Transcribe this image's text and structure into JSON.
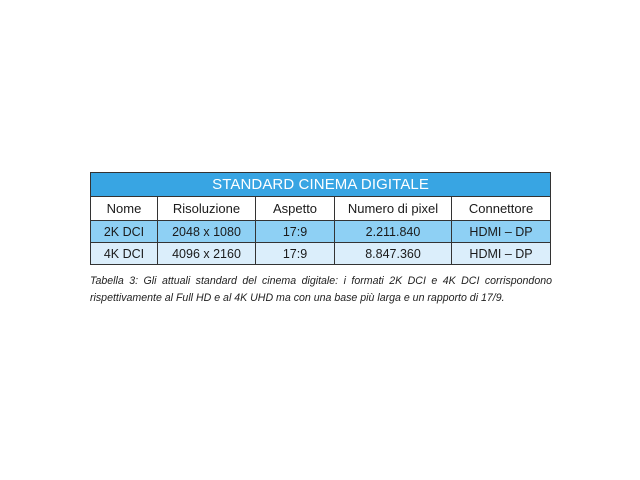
{
  "table": {
    "title": "STANDARD CINEMA DIGITALE",
    "headers": [
      "Nome",
      "Risoluzione",
      "Aspetto",
      "Numero di pixel",
      "Connettore"
    ],
    "rows": [
      [
        "2K DCI",
        "2048 x 1080",
        "17:9",
        "2.211.840",
        "HDMI – DP"
      ],
      [
        "4K DCI",
        "4096 x 2160",
        "17:9",
        "8.847.360",
        "HDMI – DP"
      ]
    ],
    "colors": {
      "title_bg": "#38a5e3",
      "row1_bg": "#8ed0f4",
      "row2_bg": "#dbeefb"
    }
  },
  "caption": {
    "line1": "Tabella 3: Gli attuali standard del cinema digitale: i formati 2K DCI e 4K DCI corrispondono",
    "line2": "rispettivamente al Full HD e al 4K UHD ma con una base più larga e un rapporto di 17/9."
  }
}
